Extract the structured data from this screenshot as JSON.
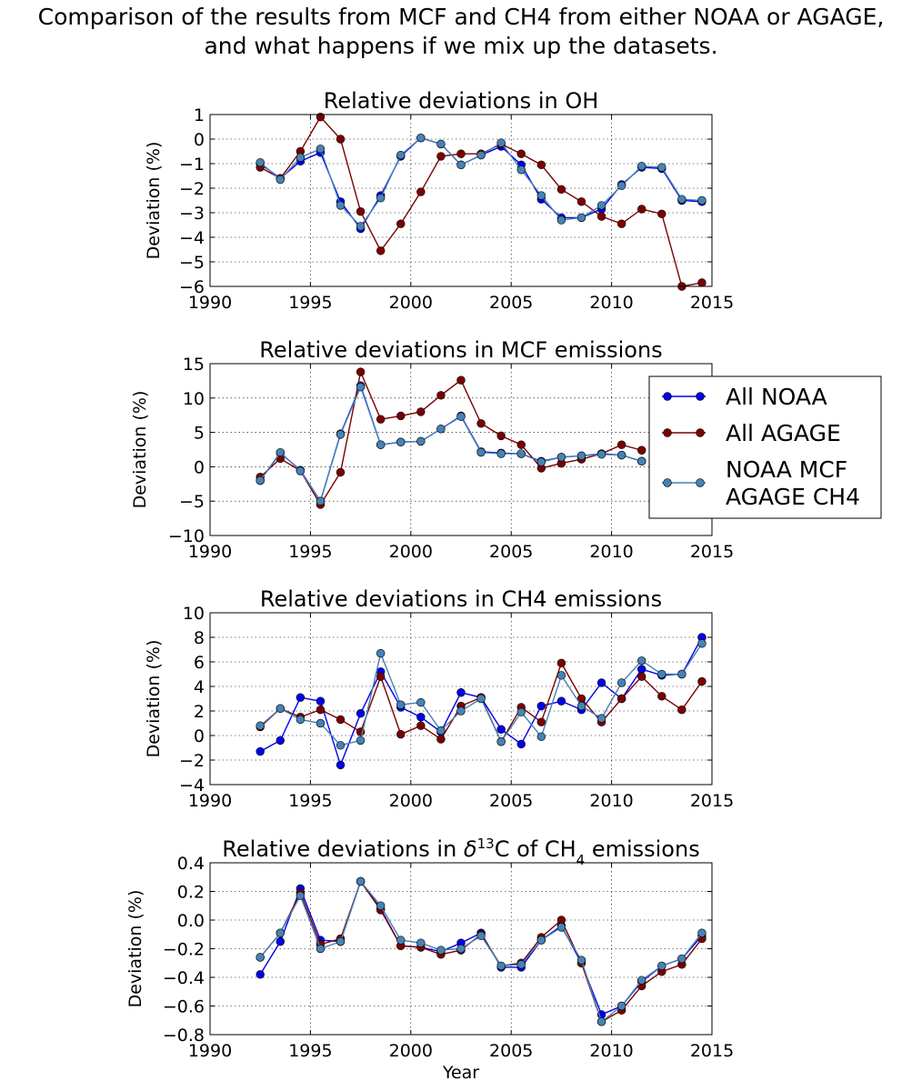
{
  "suptitle": {
    "line1": "Comparison of the results from MCF and CH4 from either NOAA or AGAGE,",
    "line2": "and what happens if we mix up the datasets."
  },
  "legend": {
    "entries": [
      {
        "lines": [
          "All NOAA"
        ],
        "color": "#0000ee"
      },
      {
        "lines": [
          "All AGAGE"
        ],
        "color": "#7a0000"
      },
      {
        "lines": [
          "NOAA MCF",
          "AGAGE CH4"
        ],
        "color": "#4682b4"
      }
    ]
  },
  "chart_data": [
    {
      "type": "line",
      "title": "Relative deviations in OH",
      "title_parts": [
        {
          "t": "Relative deviations in OH"
        }
      ],
      "xlabel": "",
      "ylabel": "Deviation (%)",
      "xlim": [
        1990,
        2015
      ],
      "ylim": [
        -6,
        1
      ],
      "xticks": [
        1990,
        1995,
        2000,
        2005,
        2010,
        2015
      ],
      "yticks": [
        -6,
        -5,
        -4,
        -3,
        -2,
        -1,
        0,
        1
      ],
      "ytick_labels": [
        "−6",
        "−5",
        "−4",
        "−3",
        "−2",
        "−1",
        "0",
        "1"
      ],
      "grid": true,
      "x": [
        1992.5,
        1993.5,
        1994.5,
        1995.5,
        1996.5,
        1997.5,
        1998.5,
        1999.5,
        2000.5,
        2001.5,
        2002.5,
        2003.5,
        2004.5,
        2005.5,
        2006.5,
        2007.5,
        2008.5,
        2009.5,
        2010.5,
        2011.5,
        2012.5,
        2013.5,
        2014.5
      ],
      "series": [
        {
          "name": "All NOAA",
          "color": "#0000ee",
          "values": [
            -1.0,
            -1.6,
            -0.9,
            -0.55,
            -2.55,
            -3.65,
            -2.3,
            -0.7,
            0.05,
            -0.2,
            -1.05,
            -0.65,
            -0.3,
            -1.05,
            -2.45,
            -3.2,
            -3.2,
            -2.85,
            -1.85,
            -1.15,
            -1.2,
            -2.5,
            -2.55
          ]
        },
        {
          "name": "All AGAGE",
          "color": "#7a0000",
          "values": [
            -1.15,
            -1.6,
            -0.5,
            0.9,
            0.0,
            -2.95,
            -4.55,
            -3.45,
            -2.15,
            -0.7,
            -0.6,
            -0.6,
            -0.2,
            -0.6,
            -1.05,
            -2.05,
            -2.55,
            -3.15,
            -3.45,
            -2.85,
            -3.05,
            -6.0,
            -5.85
          ]
        },
        {
          "name": "NOAA MCF AGAGE CH4",
          "color": "#4682b4",
          "values": [
            -0.95,
            -1.65,
            -0.75,
            -0.4,
            -2.7,
            -3.55,
            -2.4,
            -0.65,
            0.05,
            -0.2,
            -1.05,
            -0.65,
            -0.15,
            -1.25,
            -2.3,
            -3.3,
            -3.2,
            -2.7,
            -1.9,
            -1.1,
            -1.15,
            -2.45,
            -2.5
          ]
        }
      ]
    },
    {
      "type": "line",
      "title": "Relative deviations in MCF emissions",
      "title_parts": [
        {
          "t": "Relative deviations in MCF emissions"
        }
      ],
      "xlabel": "",
      "ylabel": "Deviation (%)",
      "xlim": [
        1990,
        2015
      ],
      "ylim": [
        -10,
        15
      ],
      "xticks": [
        1990,
        1995,
        2000,
        2005,
        2010,
        2015
      ],
      "yticks": [
        -10,
        -5,
        0,
        5,
        10,
        15
      ],
      "ytick_labels": [
        "−10",
        "−5",
        "0",
        "5",
        "10",
        "15"
      ],
      "grid": true,
      "x": [
        1992.5,
        1993.5,
        1994.5,
        1995.5,
        1996.5,
        1997.5,
        1998.5,
        1999.5,
        2000.5,
        2001.5,
        2002.5,
        2003.5,
        2004.5,
        2005.5,
        2006.5,
        2007.5,
        2008.5,
        2009.5,
        2010.5,
        2011.5
      ],
      "series": [
        {
          "name": "All NOAA",
          "color": "#0000ee",
          "values": [
            -2.0,
            2.0,
            -0.5,
            -5.0,
            4.8,
            11.8,
            3.2,
            3.6,
            3.7,
            5.5,
            7.4,
            2.2,
            2.0,
            1.9,
            0.8,
            1.4,
            1.6,
            1.9,
            1.7,
            0.8
          ]
        },
        {
          "name": "All AGAGE",
          "color": "#7a0000",
          "values": [
            -1.5,
            1.2,
            -0.6,
            -5.5,
            -0.8,
            13.8,
            6.9,
            7.4,
            8.0,
            10.4,
            12.6,
            6.3,
            4.5,
            3.2,
            -0.2,
            0.5,
            1.1,
            1.9,
            3.2,
            2.4
          ]
        },
        {
          "name": "NOAA MCF AGAGE CH4",
          "color": "#4682b4",
          "values": [
            -2.0,
            2.1,
            -0.6,
            -5.0,
            4.7,
            11.6,
            3.2,
            3.6,
            3.7,
            5.5,
            7.3,
            2.1,
            1.9,
            1.9,
            0.7,
            1.4,
            1.6,
            1.8,
            1.7,
            0.8
          ]
        }
      ]
    },
    {
      "type": "line",
      "title": "Relative deviations in CH4 emissions",
      "title_parts": [
        {
          "t": "Relative deviations in CH4 emissions"
        }
      ],
      "xlabel": "",
      "ylabel": "Deviation (%)",
      "xlim": [
        1990,
        2015
      ],
      "ylim": [
        -4,
        10
      ],
      "xticks": [
        1990,
        1995,
        2000,
        2005,
        2010,
        2015
      ],
      "yticks": [
        -4,
        -2,
        0,
        2,
        4,
        6,
        8,
        10
      ],
      "ytick_labels": [
        "−4",
        "−2",
        "0",
        "2",
        "4",
        "6",
        "8",
        "10"
      ],
      "grid": true,
      "x": [
        1992.5,
        1993.5,
        1994.5,
        1995.5,
        1996.5,
        1997.5,
        1998.5,
        1999.5,
        2000.5,
        2001.5,
        2002.5,
        2003.5,
        2004.5,
        2005.5,
        2006.5,
        2007.5,
        2008.5,
        2009.5,
        2010.5,
        2011.5,
        2012.5,
        2013.5,
        2014.5
      ],
      "series": [
        {
          "name": "All NOAA",
          "color": "#0000ee",
          "values": [
            -1.3,
            -0.4,
            3.1,
            2.8,
            -2.4,
            1.8,
            5.2,
            2.3,
            1.5,
            0.3,
            3.5,
            3.1,
            0.5,
            -0.7,
            2.4,
            2.8,
            2.1,
            4.3,
            3.0,
            5.4,
            4.9,
            5.0,
            8.0
          ]
        },
        {
          "name": "All AGAGE",
          "color": "#7a0000",
          "values": [
            0.7,
            2.2,
            1.5,
            2.1,
            1.3,
            0.3,
            4.8,
            0.1,
            0.8,
            -0.3,
            2.4,
            3.1,
            -0.5,
            2.3,
            1.1,
            5.9,
            3.0,
            1.1,
            3.0,
            4.8,
            3.2,
            2.1,
            4.4
          ]
        },
        {
          "name": "NOAA MCF AGAGE CH4",
          "color": "#4682b4",
          "values": [
            0.8,
            2.2,
            1.3,
            1.0,
            -0.8,
            -0.4,
            6.7,
            2.5,
            2.7,
            0.4,
            2.0,
            3.0,
            -0.5,
            1.9,
            -0.1,
            4.9,
            2.4,
            1.4,
            4.3,
            6.1,
            5.0,
            5.0,
            7.5
          ]
        }
      ]
    },
    {
      "type": "line",
      "title": "Relative deviations in δ¹³C of CH₄ emissions",
      "title_parts": [
        {
          "t": "Relative deviations in "
        },
        {
          "t": "δ",
          "italic": true
        },
        {
          "t": "13",
          "sup": true
        },
        {
          "t": "C of CH"
        },
        {
          "t": "4",
          "sub": true
        },
        {
          "t": " emissions"
        }
      ],
      "xlabel": "Year",
      "ylabel": "Deviation (%)",
      "xlim": [
        1990,
        2015
      ],
      "ylim": [
        -0.8,
        0.4
      ],
      "xticks": [
        1990,
        1995,
        2000,
        2005,
        2010,
        2015
      ],
      "yticks": [
        -0.8,
        -0.6,
        -0.4,
        -0.2,
        0.0,
        0.2,
        0.4
      ],
      "ytick_labels": [
        "−0.8",
        "−0.6",
        "−0.4",
        "−0.2",
        "0.0",
        "0.2",
        "0.4"
      ],
      "grid": true,
      "x": [
        1992.5,
        1993.5,
        1994.5,
        1995.5,
        1996.5,
        1997.5,
        1998.5,
        1999.5,
        2000.5,
        2001.5,
        2002.5,
        2003.5,
        2004.5,
        2005.5,
        2006.5,
        2007.5,
        2008.5,
        2009.5,
        2010.5,
        2011.5,
        2012.5,
        2013.5,
        2014.5
      ],
      "series": [
        {
          "name": "All NOAA",
          "color": "#0000ee",
          "values": [
            -0.38,
            -0.15,
            0.22,
            -0.14,
            -0.15,
            0.27,
            0.08,
            -0.18,
            -0.19,
            -0.22,
            -0.16,
            -0.09,
            -0.33,
            -0.33,
            -0.14,
            -0.04,
            -0.3,
            -0.66,
            -0.6,
            -0.43,
            -0.32,
            -0.27,
            -0.11
          ]
        },
        {
          "name": "All AGAGE",
          "color": "#7a0000",
          "values": [
            -0.26,
            -0.09,
            0.19,
            -0.17,
            -0.13,
            0.27,
            0.07,
            -0.18,
            -0.19,
            -0.24,
            -0.21,
            -0.1,
            -0.32,
            -0.3,
            -0.12,
            0.0,
            -0.3,
            -0.71,
            -0.63,
            -0.46,
            -0.36,
            -0.31,
            -0.13
          ]
        },
        {
          "name": "NOAA MCF AGAGE CH4",
          "color": "#4682b4",
          "values": [
            -0.26,
            -0.09,
            0.17,
            -0.2,
            -0.15,
            0.27,
            0.1,
            -0.14,
            -0.16,
            -0.21,
            -0.2,
            -0.11,
            -0.32,
            -0.31,
            -0.14,
            -0.05,
            -0.28,
            -0.71,
            -0.6,
            -0.42,
            -0.32,
            -0.27,
            -0.09
          ]
        }
      ]
    }
  ]
}
